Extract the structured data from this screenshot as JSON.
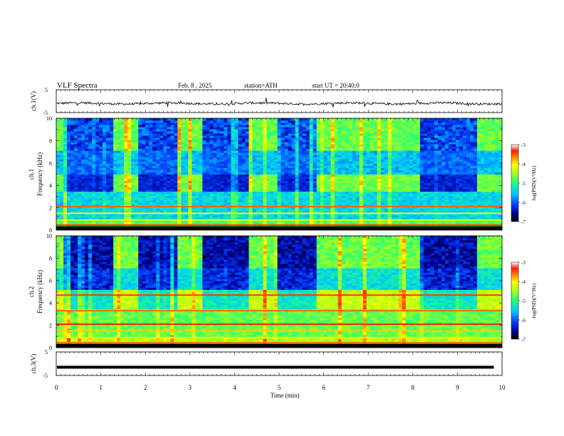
{
  "header": {
    "title": "VLF Spectra",
    "date": "Feb. 8 , 2025",
    "station": "station=ATH",
    "start_time": "start UT = 20:40:0"
  },
  "chart_data": [
    {
      "type": "line",
      "id": "ch1-waveform",
      "ylabel": "ch.1(V)",
      "ylim": [
        -5,
        5
      ],
      "yticks": [
        "5",
        "-5"
      ],
      "xlim": [
        0,
        10
      ],
      "description_level": "noisy waveform around -1 V"
    },
    {
      "type": "heatmap",
      "id": "ch1-spectrogram",
      "ylabel": "ch.1 Frequency (kHz)",
      "ylim": [
        0,
        10
      ],
      "yticks": [
        "0",
        "2",
        "4",
        "6",
        "8",
        "10"
      ],
      "xlim": [
        0,
        10
      ],
      "colorbar": {
        "label": "log(PSD)(V²/Hz)",
        "ticks": [
          "-3",
          "-4",
          "-5",
          "-6",
          "-7"
        ],
        "range": [
          -7,
          -3
        ]
      },
      "transmitter_on_intervals_min": [
        [
          0.15,
          1.25
        ],
        [
          1.85,
          2.75
        ],
        [
          3.3,
          4.35
        ],
        [
          4.95,
          5.8
        ],
        [
          8.2,
          9.4
        ]
      ]
    },
    {
      "type": "heatmap",
      "id": "ch2-spectrogram",
      "ylabel": "ch.2 Frequency (kHz)",
      "ylim": [
        0,
        10
      ],
      "yticks": [
        "0",
        "2",
        "4",
        "6",
        "8",
        "10"
      ],
      "xlim": [
        0,
        10
      ],
      "colorbar": {
        "label": "log(PSD)(V²/Hz)",
        "ticks": [
          "-3",
          "-4",
          "-5",
          "-6",
          "-7"
        ],
        "range": [
          -7,
          -3
        ]
      },
      "transmitter_on_intervals_min": [
        [
          0.15,
          1.25
        ],
        [
          1.85,
          2.75
        ],
        [
          3.3,
          4.35
        ],
        [
          4.95,
          5.8
        ],
        [
          8.2,
          9.4
        ]
      ]
    },
    {
      "type": "line",
      "id": "ch3-waveform",
      "ylabel": "ch.3(V)",
      "ylim": [
        -5,
        5
      ],
      "yticks": [
        "5",
        "-5"
      ],
      "xlim": [
        0,
        10
      ],
      "xlabel": "Time (min)",
      "xticks": [
        "0",
        "1",
        "2",
        "3",
        "4",
        "5",
        "6",
        "7",
        "8",
        "9",
        "10"
      ],
      "constant_level": -1.5
    }
  ]
}
